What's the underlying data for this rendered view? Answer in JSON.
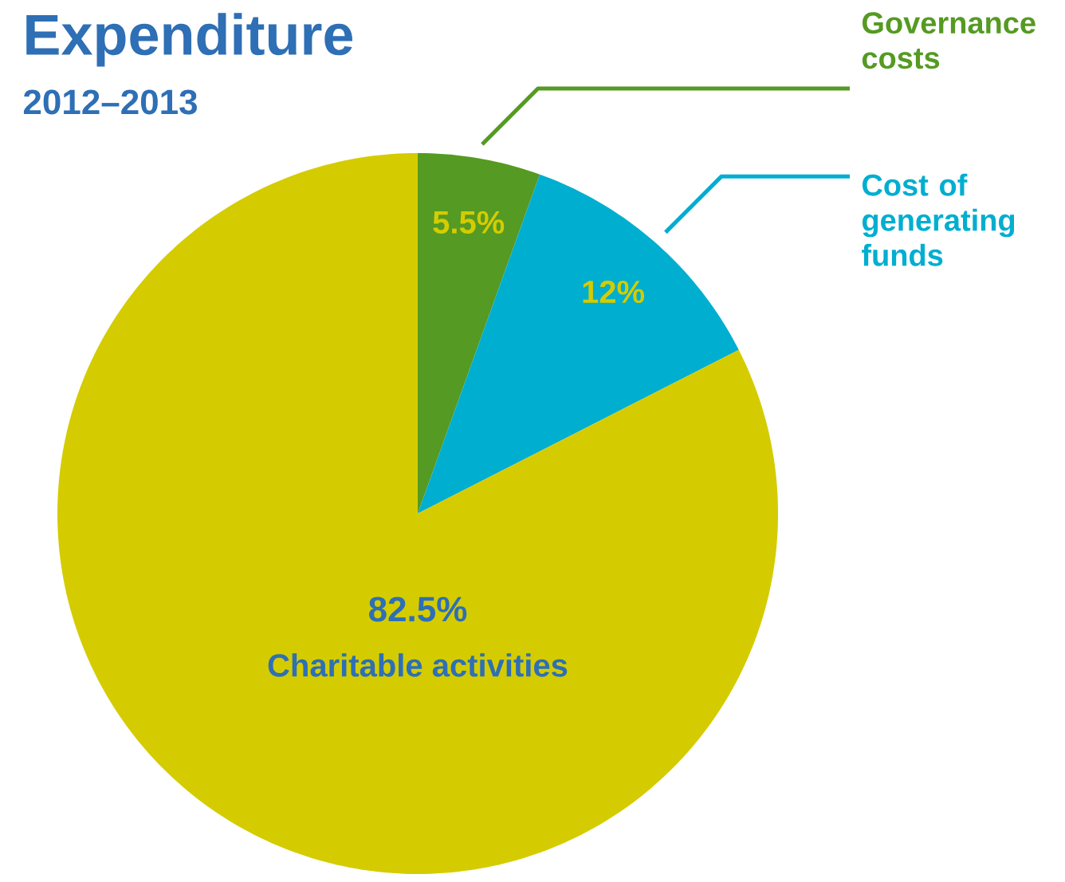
{
  "chart_data": {
    "type": "pie",
    "title": "Expenditure",
    "subtitle": "2012–2013",
    "categories": [
      "Governance costs",
      "Cost of generating funds",
      "Charitable activities"
    ],
    "values": [
      5.5,
      12,
      82.5
    ],
    "colors": [
      "#559a22",
      "#00aed0",
      "#d4cc00"
    ],
    "value_labels": [
      "5.5%",
      "12%",
      "82.5%"
    ]
  }
}
